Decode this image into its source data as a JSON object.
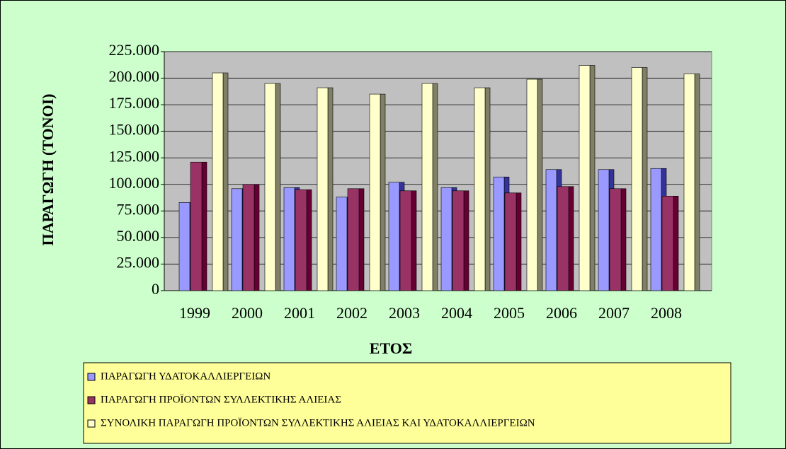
{
  "chart_data": {
    "type": "bar",
    "ylabel": "ΠΑΡΑΓΩΓΗ (ΤΟΝΟΙ)",
    "xlabel": "ΕΤΟΣ",
    "categories": [
      "1999",
      "2000",
      "2001",
      "2002",
      "2003",
      "2004",
      "2005",
      "2006",
      "2007",
      "2008"
    ],
    "series": [
      {
        "name": "ΠΑΡΑΓΩΓΗ ΥΔΑΤΟΚΑΛΛΙΕΡΓΕΙΩΝ",
        "color": "#9999ff",
        "values": [
          83000,
          96000,
          97000,
          88000,
          102000,
          97000,
          107000,
          114000,
          114000,
          115000
        ]
      },
      {
        "name": "ΠΑΡΑΓΩΓΗ ΠΡΟΪΟΝΤΩΝ ΣΥΛΛΕΚΤΙΚΗΣ ΑΛΙΕΙΑΣ",
        "color": "#993366",
        "values": [
          121000,
          100000,
          95000,
          96000,
          94000,
          94000,
          92000,
          98000,
          96000,
          89000
        ]
      },
      {
        "name": "ΣΥΝΟΛΙΚΗ ΠΑΡΑΓΩΓΗ ΠΡΟΪΟΝΤΩΝ ΣΥΛΛΕΚΤΙΚΗΣ ΑΛΙΕΙΑΣ ΚΑΙ ΥΔΑΤΟΚΑΛΛΙΕΡΓΕΙΩΝ",
        "color": "#ffffcc",
        "values": [
          205000,
          195000,
          191000,
          185000,
          195000,
          191000,
          199000,
          212000,
          210000,
          204000
        ]
      }
    ],
    "ylim": [
      0,
      225000
    ],
    "yticks": [
      0,
      {
        "value": 25000,
        "label": "25.000"
      },
      {
        "value": 50000,
        "label": "50.000"
      },
      {
        "value": 75000,
        "label": "75.000"
      },
      {
        "value": 100000,
        "label": "100.000"
      },
      {
        "value": 125000,
        "label": "125.000"
      },
      {
        "value": 150000,
        "label": "150.000"
      },
      {
        "value": 175000,
        "label": "175.000"
      },
      {
        "value": 200000,
        "label": "200.000"
      },
      {
        "value": 225000,
        "label": "225.000"
      }
    ],
    "grid": true
  }
}
